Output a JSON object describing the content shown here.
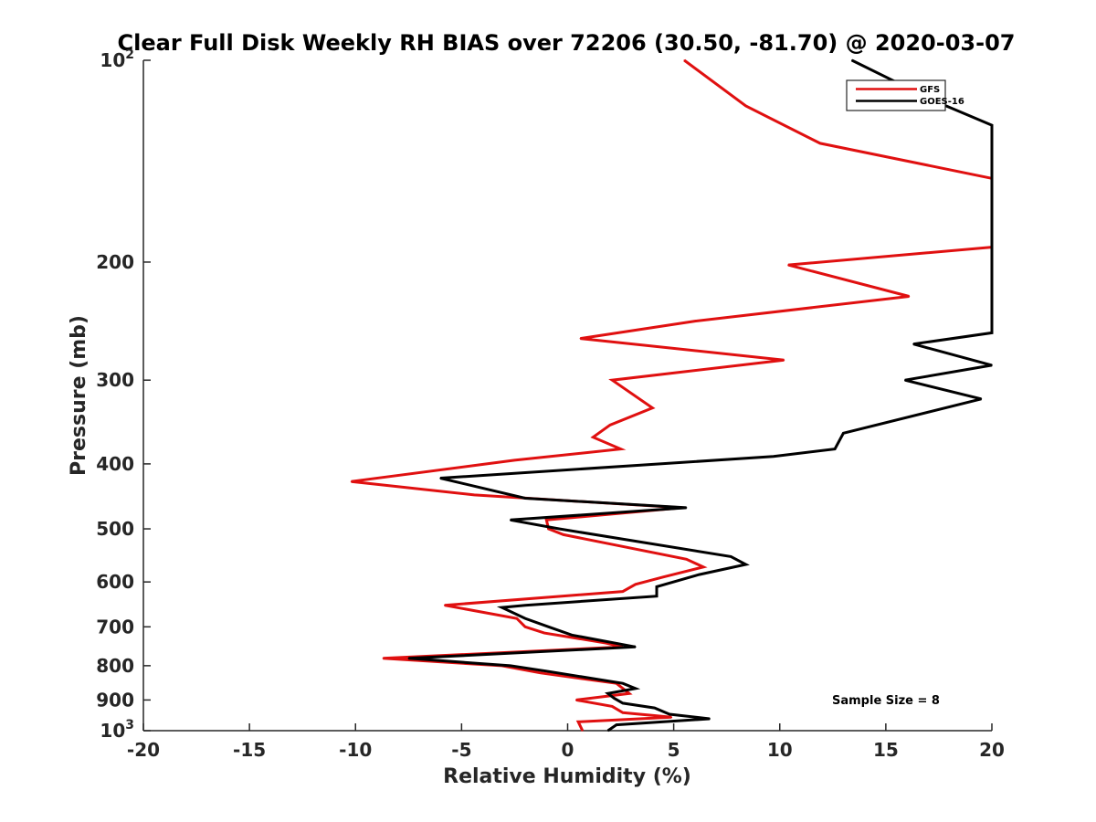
{
  "chart_data": {
    "type": "line",
    "title": "Clear Full Disk Weekly RH BIAS over 72206 (30.50, -81.70) @ 2020-03-07",
    "xlabel": "Relative Humidity (%)",
    "ylabel": "Pressure (mb)",
    "xlim": [
      -20,
      20
    ],
    "ylim": [
      100,
      1000
    ],
    "y_scale": "log",
    "y_reversed": true,
    "grid": false,
    "legend_position": "top-right",
    "x_ticks": [
      "-20",
      "-15",
      "-10",
      "-5",
      "0",
      "5",
      "10",
      "15",
      "20"
    ],
    "y_ticks": [
      {
        "value": 100,
        "label_base": "10",
        "label_exp": "2"
      },
      {
        "value": 200,
        "label_base": "200",
        "label_exp": ""
      },
      {
        "value": 300,
        "label_base": "300",
        "label_exp": ""
      },
      {
        "value": 400,
        "label_base": "400",
        "label_exp": ""
      },
      {
        "value": 500,
        "label_base": "500",
        "label_exp": ""
      },
      {
        "value": 600,
        "label_base": "600",
        "label_exp": ""
      },
      {
        "value": 700,
        "label_base": "700",
        "label_exp": ""
      },
      {
        "value": 800,
        "label_base": "800",
        "label_exp": ""
      },
      {
        "value": 900,
        "label_base": "900",
        "label_exp": ""
      },
      {
        "value": 1000,
        "label_base": "10",
        "label_exp": "3"
      }
    ],
    "series": [
      {
        "name": "GFS",
        "color": "#e01010",
        "points": [
          {
            "x": 0.7,
            "y": 1000
          },
          {
            "x": 0.5,
            "y": 970
          },
          {
            "x": 4.9,
            "y": 955
          },
          {
            "x": 2.6,
            "y": 940
          },
          {
            "x": 2.1,
            "y": 920
          },
          {
            "x": 0.4,
            "y": 900
          },
          {
            "x": 2.9,
            "y": 880
          },
          {
            "x": 2.3,
            "y": 850
          },
          {
            "x": -1.3,
            "y": 820
          },
          {
            "x": -3.1,
            "y": 800
          },
          {
            "x": -8.7,
            "y": 780
          },
          {
            "x": 2.6,
            "y": 750
          },
          {
            "x": 1.8,
            "y": 740
          },
          {
            "x": -1.1,
            "y": 715
          },
          {
            "x": -2.0,
            "y": 700
          },
          {
            "x": -2.4,
            "y": 680
          },
          {
            "x": -5.8,
            "y": 650
          },
          {
            "x": 2.6,
            "y": 620
          },
          {
            "x": 3.2,
            "y": 605
          },
          {
            "x": 4.5,
            "y": 590
          },
          {
            "x": 6.4,
            "y": 570
          },
          {
            "x": 5.6,
            "y": 555
          },
          {
            "x": -0.2,
            "y": 510
          },
          {
            "x": -0.9,
            "y": 500
          },
          {
            "x": -1.0,
            "y": 485
          },
          {
            "x": 5.4,
            "y": 465
          },
          {
            "x": -4.4,
            "y": 445
          },
          {
            "x": -10.2,
            "y": 425
          },
          {
            "x": -2.5,
            "y": 395
          },
          {
            "x": 2.5,
            "y": 380
          },
          {
            "x": 1.2,
            "y": 365
          },
          {
            "x": 2.0,
            "y": 350
          },
          {
            "x": 4.0,
            "y": 330
          },
          {
            "x": 2.1,
            "y": 300
          },
          {
            "x": 10.2,
            "y": 280
          },
          {
            "x": 0.6,
            "y": 260
          },
          {
            "x": 6.0,
            "y": 245
          },
          {
            "x": 16.1,
            "y": 225
          },
          {
            "x": 10.4,
            "y": 202
          },
          {
            "x": 20.0,
            "y": 190
          },
          {
            "x": 20.0,
            "y": 150
          },
          {
            "x": 11.9,
            "y": 133
          },
          {
            "x": 8.4,
            "y": 117
          },
          {
            "x": 5.5,
            "y": 100
          }
        ]
      },
      {
        "name": "GOES-16",
        "color": "#000000",
        "points": [
          {
            "x": 1.9,
            "y": 1000
          },
          {
            "x": 2.3,
            "y": 980
          },
          {
            "x": 6.7,
            "y": 960
          },
          {
            "x": 4.8,
            "y": 945
          },
          {
            "x": 4.1,
            "y": 925
          },
          {
            "x": 2.6,
            "y": 910
          },
          {
            "x": 2.2,
            "y": 895
          },
          {
            "x": 1.9,
            "y": 880
          },
          {
            "x": 3.2,
            "y": 865
          },
          {
            "x": 2.6,
            "y": 850
          },
          {
            "x": -1.0,
            "y": 815
          },
          {
            "x": -2.7,
            "y": 800
          },
          {
            "x": -7.5,
            "y": 780
          },
          {
            "x": 3.2,
            "y": 750
          },
          {
            "x": 0.2,
            "y": 720
          },
          {
            "x": -0.9,
            "y": 700
          },
          {
            "x": -2.0,
            "y": 680
          },
          {
            "x": -3.1,
            "y": 655
          },
          {
            "x": -2.0,
            "y": 650
          },
          {
            "x": 4.2,
            "y": 630
          },
          {
            "x": 4.2,
            "y": 610
          },
          {
            "x": 6.2,
            "y": 585
          },
          {
            "x": 8.4,
            "y": 565
          },
          {
            "x": 7.7,
            "y": 550
          },
          {
            "x": -0.4,
            "y": 500
          },
          {
            "x": -2.7,
            "y": 485
          },
          {
            "x": 5.6,
            "y": 465
          },
          {
            "x": -2.0,
            "y": 450
          },
          {
            "x": -6.0,
            "y": 420
          },
          {
            "x": 9.7,
            "y": 390
          },
          {
            "x": 12.6,
            "y": 380
          },
          {
            "x": 13.0,
            "y": 360
          },
          {
            "x": 19.5,
            "y": 320
          },
          {
            "x": 15.9,
            "y": 300
          },
          {
            "x": 20.0,
            "y": 285
          },
          {
            "x": 16.3,
            "y": 265
          },
          {
            "x": 20.0,
            "y": 255
          },
          {
            "x": 20.0,
            "y": 125
          },
          {
            "x": 17.3,
            "y": 115
          },
          {
            "x": 13.4,
            "y": 100
          }
        ]
      }
    ],
    "legend": [
      {
        "name": "GFS",
        "color": "#e01010"
      },
      {
        "name": "GOES-16",
        "color": "#000000"
      }
    ],
    "annotations": [
      {
        "text": "Sample Size = 8"
      }
    ]
  }
}
